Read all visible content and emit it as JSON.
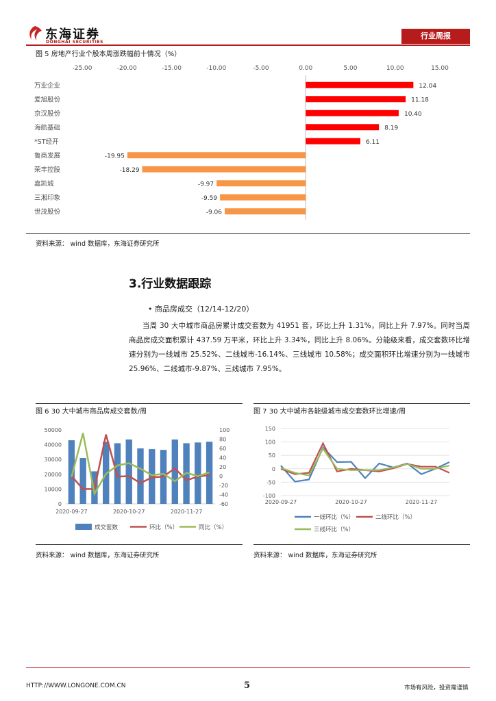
{
  "header": {
    "logo_cn": "东海证券",
    "logo_en": "DONGHAI SECURITIES",
    "badge": "行业周报",
    "accent": "#b71c1c"
  },
  "fig5": {
    "caption": "图 5   房地产行业个股本周涨跌幅前十情况（%）",
    "source": "资料来源：  wind 数据库，东海证券研究所",
    "chart_data": {
      "type": "bar",
      "orientation": "horizontal",
      "title": "",
      "xlim": [
        -25,
        15
      ],
      "ticks": [
        "-25.00",
        "-20.00",
        "-15.00",
        "-10.00",
        "-5.00",
        "0.00",
        "5.00",
        "10.00",
        "15.00"
      ],
      "tick_values": [
        -25,
        -20,
        -15,
        -10,
        -5,
        0,
        5,
        10,
        15
      ],
      "categories": [
        "万业企业",
        "爱旭股份",
        "京汉股份",
        "海航基础",
        "*ST经开",
        "鲁商发展",
        "荣丰控股",
        "嘉凯城",
        "三湘印象",
        "世茂股份"
      ],
      "values": [
        12.04,
        11.18,
        10.4,
        8.19,
        6.11,
        -19.95,
        -18.29,
        -9.97,
        -9.59,
        -9.06
      ],
      "labels": [
        "12.04",
        "11.18",
        "10.40",
        "8.19",
        "6.11",
        "-19.95",
        "-18.29",
        "-9.97",
        "-9.59",
        "-9.06"
      ],
      "pos_color": "#ff0000",
      "neg_color": "#f79646"
    }
  },
  "section": {
    "title": "3.行业数据跟踪",
    "bullet": "• 商品房成交（12/14-12/20）",
    "para": "当周 30 大中城市商品房累计成交套数为 41951 套，环比上升 1.31%，同比上升 7.97%。同时当周商品房成交面积累计 437.59 万平米，环比上升 3.34%，同比上升 8.06%。分能级来看，成交套数环比增速分别为一线城市 25.52%、二线城市-16.14%、三线城市 10.58%；成交面积环比增速分别为一线城市 25.96%、二线城市-9.87%、三线城市 7.95%。"
  },
  "fig6": {
    "caption": "图 6   30 大中城市商品房成交套数/周",
    "source": "资料来源：  wind 数据库，东海证券研究所",
    "chart_data": {
      "type": "bar+line",
      "x_ticks": [
        "2020-09-27",
        "2020-10-27",
        "2020-11-27"
      ],
      "x_tick_index": [
        0,
        5,
        10
      ],
      "left_ticks": [
        "50000",
        "40000",
        "30000",
        "20000",
        "10000",
        "0"
      ],
      "left_ylim": [
        0,
        50000
      ],
      "right_ticks": [
        "100",
        "80",
        "60",
        "40",
        "20",
        "0",
        "-20",
        "-40",
        "-60"
      ],
      "right_ylim": [
        -60,
        100
      ],
      "series": [
        {
          "name": "成交套数",
          "axis": "left",
          "kind": "bar",
          "color": "#4f81bd",
          "values": [
            43000,
            31000,
            22000,
            42000,
            41000,
            43500,
            37500,
            37000,
            36500,
            43500,
            41000,
            41500,
            42000
          ]
        },
        {
          "name": "环比（%）",
          "axis": "right",
          "kind": "line",
          "color": "#c0504d",
          "values": [
            0,
            -28,
            -28,
            90,
            -1,
            0,
            -15,
            -3,
            -1,
            17,
            -9,
            -1,
            2
          ]
        },
        {
          "name": "同比（%）",
          "axis": "right",
          "kind": "line",
          "color": "#9bbb59",
          "values": [
            -2,
            93,
            -38,
            5,
            23,
            28,
            16,
            2,
            5,
            -11,
            7,
            0,
            8
          ]
        }
      ],
      "legend": "bottom"
    }
  },
  "fig7": {
    "caption": "图 7   30 大中城市各能级城市成交套数环比增速/周",
    "source": "资料来源：  wind 数据库，东海证券研究所",
    "chart_data": {
      "type": "line",
      "x_ticks": [
        "2020-09-27",
        "2020-10-27",
        "2020-11-27"
      ],
      "x_tick_index": [
        0,
        5,
        10
      ],
      "y_ticks": [
        "150",
        "100",
        "50",
        "0",
        "-50",
        "-100"
      ],
      "ylim": [
        -100,
        150
      ],
      "series": [
        {
          "name": "一线环比（%）",
          "color": "#4f81bd",
          "values": [
            12,
            -48,
            -40,
            80,
            25,
            26,
            -35,
            20,
            5,
            20,
            -20,
            0,
            25
          ]
        },
        {
          "name": "二线环比（%）",
          "color": "#c0504d",
          "values": [
            0,
            -20,
            -15,
            95,
            -10,
            0,
            -5,
            -10,
            2,
            18,
            8,
            8,
            -15
          ]
        },
        {
          "name": "三线环比（%）",
          "color": "#9bbb59",
          "values": [
            3,
            -15,
            -25,
            75,
            0,
            -5,
            -5,
            -5,
            5,
            18,
            0,
            0,
            12
          ]
        }
      ],
      "legend": "bottom"
    }
  },
  "footer": {
    "url": "HTTP://WWW.LONGONE.COM.CN",
    "page": "5",
    "note": "市场有风险，投资需谨慎"
  }
}
